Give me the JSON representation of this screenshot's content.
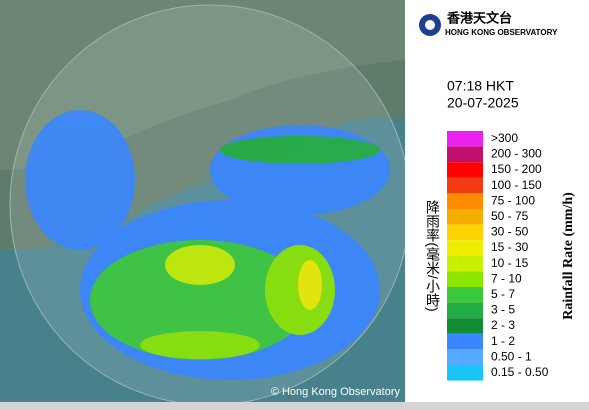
{
  "header": {
    "org_chinese": "香港天文台",
    "org_english": "HONG KONG OBSERVATORY"
  },
  "time": "07:18 HKT",
  "date": "20-07-2025",
  "legend": {
    "title_chinese": "降雨率(毫米/小時)",
    "title_english": "Rainfall Rate (mm/h)",
    "items": [
      {
        "label": ">300",
        "color": "#ee22ee"
      },
      {
        "label": "200 - 300",
        "color": "#c0106e"
      },
      {
        "label": "150 - 200",
        "color": "#ff0000"
      },
      {
        "label": "100 - 150",
        "color": "#f03c10"
      },
      {
        "label": "75 - 100",
        "color": "#ff8c00"
      },
      {
        "label": "50 - 75",
        "color": "#f5ae00"
      },
      {
        "label": "30 - 50",
        "color": "#ffd200"
      },
      {
        "label": "15 - 30",
        "color": "#f0ee00"
      },
      {
        "label": "10 - 15",
        "color": "#c8f000"
      },
      {
        "label": "7 - 10",
        "color": "#8ce600"
      },
      {
        "label": "5 - 7",
        "color": "#3cc83c"
      },
      {
        "label": "3 - 5",
        "color": "#22ae44"
      },
      {
        "label": "2 - 3",
        "color": "#128c34"
      },
      {
        "label": "1 - 2",
        "color": "#3a86ff"
      },
      {
        "label": "0.50 - 1",
        "color": "#55aaff"
      },
      {
        "label": "0.15 - 0.50",
        "color": "#19c6f5"
      }
    ]
  },
  "copyright": "© Hong Kong Observatory"
}
